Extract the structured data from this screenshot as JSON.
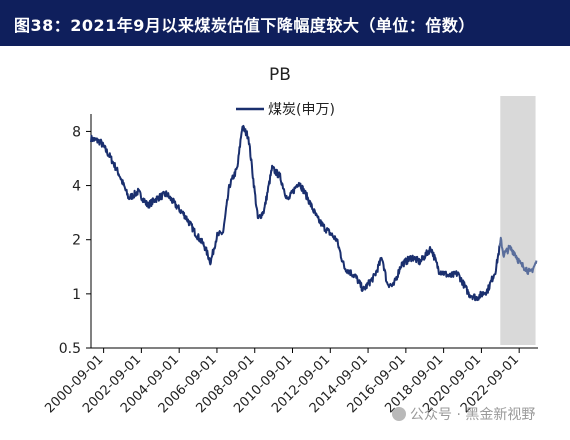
{
  "header": {
    "title": "图38：2021年9月以来煤炭估值下降幅度较大（单位：倍数）"
  },
  "watermark": {
    "text": "公众号 · 黑金新视野"
  },
  "colors": {
    "header_bg": "#0f1f5c",
    "line": "#1a2f6e",
    "shade": "#d9d9d9"
  },
  "chart_data": {
    "type": "line",
    "title": "PB",
    "ylabel": "",
    "xlabel": "",
    "y_scale": "log",
    "ylim": [
      0.5,
      9.5
    ],
    "xlim": [
      "2000-01-01",
      "2023-08-31"
    ],
    "y_ticks": [
      {
        "value": 0.5,
        "label": "0.5"
      },
      {
        "value": 1,
        "label": "1"
      },
      {
        "value": 2,
        "label": "2"
      },
      {
        "value": 4,
        "label": "4"
      },
      {
        "value": 8,
        "label": "8"
      }
    ],
    "x_ticks": [
      "2000-09-01",
      "2002-09-01",
      "2004-09-01",
      "2006-09-01",
      "2008-09-01",
      "2010-09-01",
      "2012-09-01",
      "2014-09-01",
      "2016-09-01",
      "2018-09-01",
      "2020-09-01",
      "2022-09-01"
    ],
    "legend_position": "top-center",
    "grid": false,
    "shaded_region": {
      "from": "2021-09-01",
      "to": "2023-07-15"
    },
    "series": [
      {
        "name": "煤炭(申万)",
        "x": [
          "2000-01-01",
          "2000-07-01",
          "2001-01-01",
          "2001-07-01",
          "2002-01-01",
          "2002-07-01",
          "2003-01-01",
          "2003-07-01",
          "2004-01-01",
          "2004-07-01",
          "2005-01-01",
          "2005-07-01",
          "2006-01-01",
          "2006-05-01",
          "2006-09-01",
          "2007-01-01",
          "2007-05-01",
          "2007-10-01",
          "2008-01-01",
          "2008-05-01",
          "2008-11-01",
          "2009-03-01",
          "2009-08-01",
          "2010-01-01",
          "2010-06-01",
          "2011-01-01",
          "2011-06-01",
          "2012-01-01",
          "2012-06-01",
          "2013-01-01",
          "2013-06-01",
          "2014-01-01",
          "2014-06-01",
          "2015-01-01",
          "2015-06-01",
          "2015-09-01",
          "2016-01-01",
          "2016-06-01",
          "2017-01-01",
          "2017-06-01",
          "2018-01-01",
          "2018-06-01",
          "2019-01-01",
          "2019-06-01",
          "2020-01-01",
          "2020-06-01",
          "2021-01-01",
          "2021-06-01",
          "2021-09-15",
          "2021-11-01",
          "2022-03-01",
          "2022-06-01",
          "2022-10-01",
          "2023-01-01",
          "2023-04-01",
          "2023-08-01"
        ],
        "values": [
          7.3,
          7.0,
          5.8,
          4.6,
          3.4,
          3.7,
          3.1,
          3.4,
          3.6,
          3.1,
          2.7,
          2.2,
          1.85,
          1.5,
          2.1,
          2.2,
          4.0,
          5.0,
          8.5,
          7.5,
          2.6,
          2.9,
          5.0,
          4.5,
          3.3,
          4.2,
          3.5,
          2.6,
          2.3,
          2.0,
          1.4,
          1.25,
          1.05,
          1.25,
          1.6,
          1.15,
          1.1,
          1.45,
          1.6,
          1.5,
          1.8,
          1.35,
          1.25,
          1.3,
          1.0,
          0.95,
          1.05,
          1.35,
          2.0,
          1.65,
          1.8,
          1.7,
          1.45,
          1.4,
          1.3,
          1.5
        ]
      }
    ]
  }
}
